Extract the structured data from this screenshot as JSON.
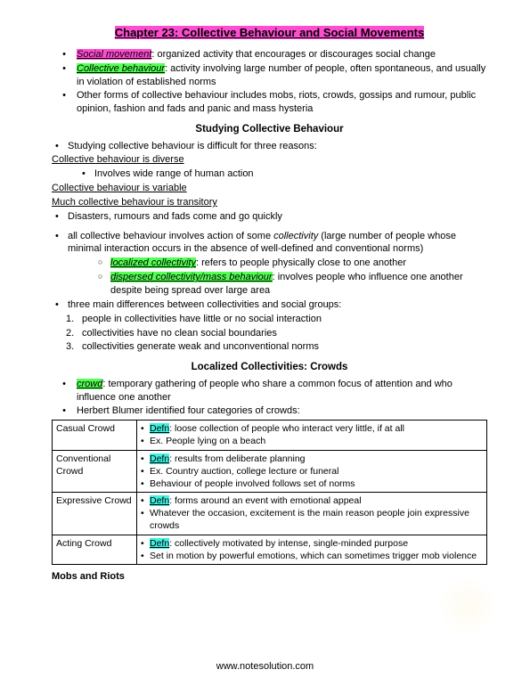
{
  "title": "Chapter 23: Collective Behaviour and Social Movements",
  "intro": {
    "b1_term": "Social movement",
    "b1_rest": ": organized activity that encourages or discourages social change",
    "b2_term": "Collective behaviour",
    "b2_rest": ": activity involving large number of people, often spontaneous, and usually in violation of established norms",
    "b3": "Other forms of collective behaviour includes mobs, riots, crowds, gossips and rumour, public opinion, fashion and fads and panic and mass hysteria"
  },
  "sec1_head": "Studying Collective Behaviour",
  "sec1": {
    "p1": "Studying collective behaviour is difficult for three reasons:",
    "u1": "Collective behaviour is diverse",
    "u1b": "Involves wide range of human action",
    "u2": "Collective behaviour is variable",
    "u3": "Much collective behaviour is transitory",
    "u3b": "Disasters, rumours and fads come and go quickly"
  },
  "mid": {
    "p1a": "all collective behaviour involves action of some ",
    "p1_em": "collectivity",
    "p1b": " (large number of people whose minimal interaction occurs in the absence of well-defined and conventional norms)",
    "o1_term": "localized collectivity",
    "o1_rest": ": refers to people physically close to one another",
    "o2_term": "dispersed collectivity/mass behaviour",
    "o2_rest": ": involves people who influence one another despite being spread over large area",
    "p2": "three main differences between collectivities and social groups:",
    "n1": "people in collectivities have little or no social interaction",
    "n2": "collectivities have no clean social boundaries",
    "n3": "collectivities generate weak and unconventional norms"
  },
  "sec2_head": "Localized Collectivities: Crowds",
  "sec2": {
    "b1_term": "crowd",
    "b1_rest": ": temporary gathering of people who share a common focus of attention and who influence one another",
    "b2": "Herbert Blumer identified four categories of crowds:"
  },
  "table": {
    "defn": "Defn",
    "rows": [
      {
        "label": "Casual Crowd",
        "lines": [
          ": loose collection of people who interact very little, if at all",
          "Ex. People lying on a beach"
        ]
      },
      {
        "label": "Conventional Crowd",
        "lines": [
          ": results from deliberate planning",
          "Ex. Country auction, college lecture or funeral",
          "Behaviour of people involved follows set of norms"
        ]
      },
      {
        "label": "Expressive Crowd",
        "lines": [
          ": forms around an event with emotional appeal",
          "Whatever the occasion, excitement is the main reason people join expressive crowds"
        ]
      },
      {
        "label": "Acting Crowd",
        "lines": [
          ": collectively motivated by intense, single-minded  purpose",
          "Set in motion by powerful emotions, which can sometimes trigger mob violence"
        ]
      }
    ]
  },
  "closing": "Mobs and Riots",
  "footer": "www.notesolution.com"
}
